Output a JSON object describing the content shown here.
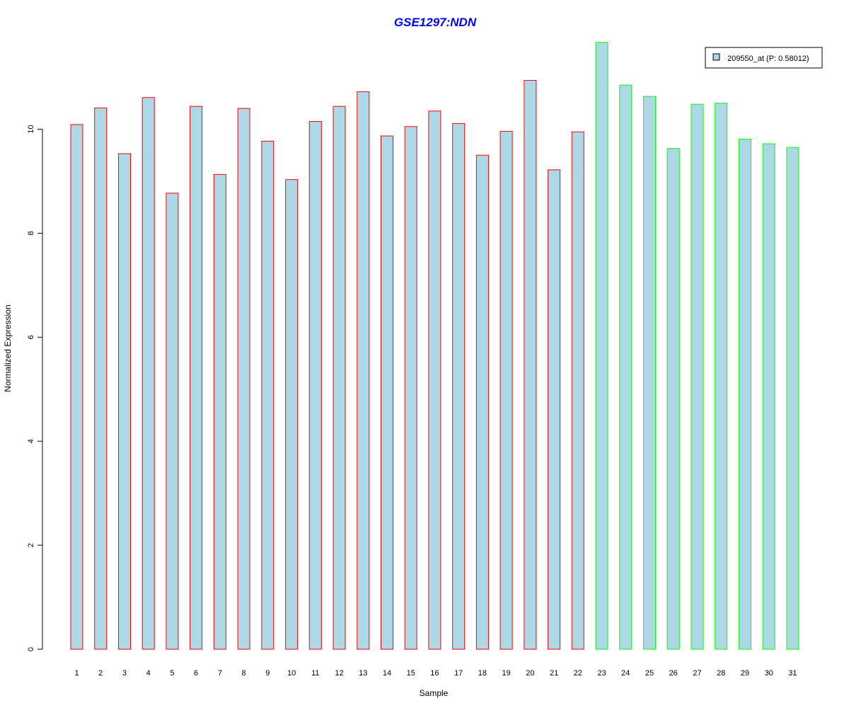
{
  "chart_data": {
    "type": "bar",
    "title": "GSE1297:NDN",
    "xlabel": "Sample",
    "ylabel": "Normalized Expression",
    "categories": [
      "1",
      "2",
      "3",
      "4",
      "5",
      "6",
      "7",
      "8",
      "9",
      "10",
      "11",
      "12",
      "13",
      "14",
      "15",
      "16",
      "17",
      "18",
      "19",
      "20",
      "21",
      "22",
      "23",
      "24",
      "25",
      "26",
      "27",
      "28",
      "29",
      "30",
      "31"
    ],
    "series": [
      {
        "name": "209550_at (P: 0.58012)",
        "values": [
          10.09,
          10.41,
          9.53,
          10.61,
          8.77,
          10.44,
          9.13,
          10.4,
          9.77,
          9.03,
          10.15,
          10.44,
          10.72,
          9.87,
          10.05,
          10.35,
          10.11,
          9.5,
          9.96,
          10.94,
          9.22,
          9.95,
          11.67,
          10.85,
          10.63,
          9.63,
          10.48,
          10.5,
          9.81,
          9.72,
          9.65
        ]
      }
    ],
    "group_colors": [
      "#ff0000",
      "#ff0000",
      "#ff0000",
      "#ff0000",
      "#ff0000",
      "#ff0000",
      "#ff0000",
      "#ff0000",
      "#ff0000",
      "#ff0000",
      "#ff0000",
      "#ff0000",
      "#ff0000",
      "#ff0000",
      "#ff0000",
      "#ff0000",
      "#ff0000",
      "#ff0000",
      "#ff0000",
      "#ff0000",
      "#ff0000",
      "#ff0000",
      "#00ff00",
      "#00ff00",
      "#00ff00",
      "#00ff00",
      "#00ff00",
      "#00ff00",
      "#00ff00",
      "#00ff00",
      "#00ff00"
    ],
    "bar_fill": "#add8e6",
    "title_color": "#0000ff",
    "yticks": [
      0,
      2,
      4,
      6,
      8,
      10
    ],
    "ylim": [
      0,
      11.7
    ],
    "grid": false,
    "legend_position": "top-right"
  }
}
